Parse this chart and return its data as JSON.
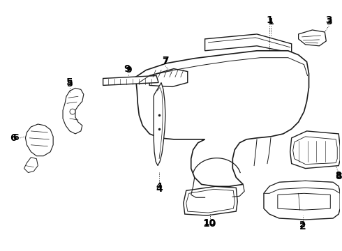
{
  "bg_color": "#ffffff",
  "line_color": "#1a1a1a",
  "label_color": "#000000",
  "figsize": [
    4.9,
    3.6
  ],
  "dpi": 100
}
